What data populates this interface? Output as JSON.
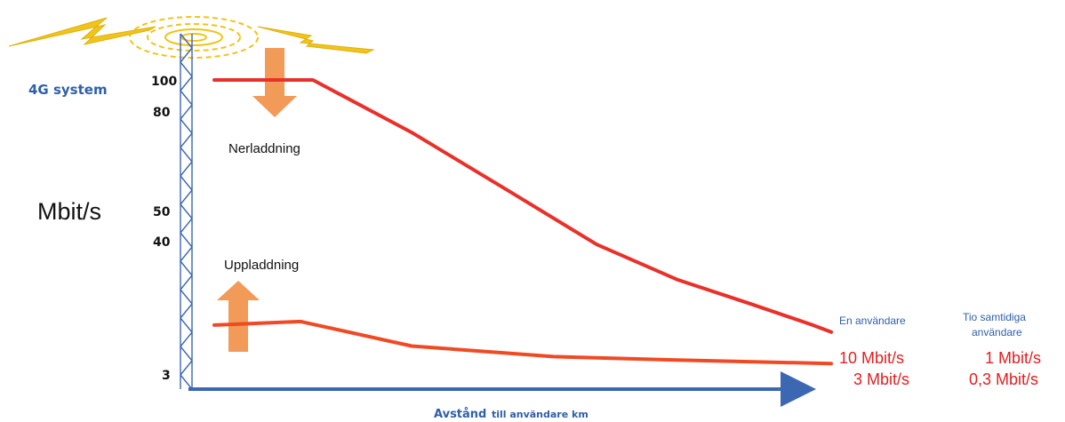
{
  "chart_data": {
    "type": "line",
    "system_label": "4G system",
    "ylabel": "Mbit/s",
    "xlabel": "Avstånd",
    "xlabel_small": "till användare km",
    "y_ticks": [
      "100",
      "80",
      "50",
      "40",
      "3"
    ],
    "series": [
      {
        "name": "Nerladdning",
        "color": "#e8312a",
        "values": [
          {
            "x": 0.0,
            "y": 100
          },
          {
            "x": 0.16,
            "y": 100
          },
          {
            "x": 0.32,
            "y": 85
          },
          {
            "x": 0.48,
            "y": 68
          },
          {
            "x": 0.62,
            "y": 53
          },
          {
            "x": 0.75,
            "y": 43
          },
          {
            "x": 0.87,
            "y": 36
          },
          {
            "x": 0.97,
            "y": 30
          },
          {
            "x": 1.0,
            "y": 28
          }
        ]
      },
      {
        "name": "Uppladdning",
        "color": "#ef4a24",
        "values": [
          {
            "x": 0.0,
            "y": 30
          },
          {
            "x": 0.14,
            "y": 31
          },
          {
            "x": 0.32,
            "y": 24
          },
          {
            "x": 0.55,
            "y": 21
          },
          {
            "x": 0.75,
            "y": 20
          },
          {
            "x": 1.0,
            "y": 19
          }
        ]
      }
    ],
    "columns": {
      "single_header": "En användare",
      "multi_header_line1": "Tio samtidiga",
      "multi_header_line2": "användare"
    },
    "end_values": [
      {
        "single": "10 Mbit/s",
        "multi": "1 Mbit/s"
      },
      {
        "single": "3 Mbit/s",
        "multi": "0,3 Mbit/s"
      }
    ],
    "colors": {
      "tower": "#3b67b3",
      "axis": "#3b67b3",
      "arrow": "#f29a57",
      "line": "#e8312a",
      "signal": "#f0c419"
    }
  }
}
